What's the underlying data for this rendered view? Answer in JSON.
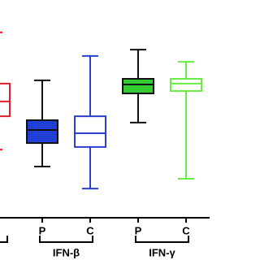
{
  "chart_data": {
    "type": "box",
    "categories": [
      null,
      "P",
      "C",
      "P",
      "C"
    ],
    "groups": [
      "IFN-β",
      "IFN-γ"
    ],
    "ylim": [
      0,
      100
    ],
    "boxes": [
      {
        "color": "#e0202a",
        "fill": "none",
        "whisker_color": "#e0202a",
        "low": 31.3,
        "q1": 46.6,
        "median": 53.4,
        "q3": 61.6,
        "high": 85.1
      },
      {
        "color": "#111111",
        "fill": "#1f3fd6",
        "whisker_color": "#111111",
        "low": 23.5,
        "q1": 34.3,
        "median": 40.3,
        "q3": 44.8,
        "high": 63.1
      },
      {
        "color": "#2b3fd0",
        "fill": "none",
        "whisker_color": "#2b3fd0",
        "low": 13.4,
        "q1": 32.5,
        "median": 38.8,
        "q3": 46.6,
        "high": 74.3
      },
      {
        "color": "#111111",
        "fill": "#33cc33",
        "whisker_color": "#111111",
        "low": 43.7,
        "q1": 57.1,
        "median": 61.2,
        "q3": 63.8,
        "high": 77.2
      },
      {
        "color": "#66ee44",
        "fill": "none",
        "whisker_color": "#66ee44",
        "low": 17.9,
        "q1": 58.2,
        "median": 61.6,
        "q3": 63.8,
        "high": 71.6
      }
    ]
  }
}
